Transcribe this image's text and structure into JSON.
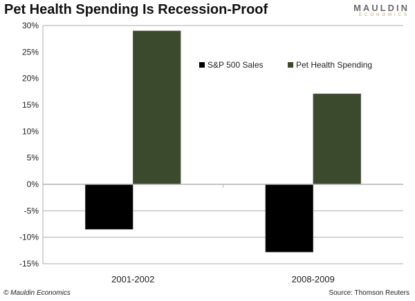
{
  "header": {
    "title": "Pet Health Spending Is Recession-Proof",
    "logo_line1": "MAULDIN",
    "logo_line2": "ECONOMICS"
  },
  "footer": {
    "copyright": "© Mauldin Economics",
    "source": "Source: Thomson Reuters"
  },
  "colors": {
    "sp500": "#000000",
    "pet": "#3b4a2c"
  },
  "chart_data": {
    "type": "bar",
    "title": "Pet Health Spending Is Recession-Proof",
    "categories": [
      "2001-2002",
      "2008-2009"
    ],
    "series": [
      {
        "name": "S&P 500 Sales",
        "values": [
          -8.5,
          -12.8
        ]
      },
      {
        "name": "Pet Health Spending",
        "values": [
          29,
          17.1
        ]
      }
    ],
    "ylim": [
      -15,
      30
    ],
    "yticks": [
      30,
      25,
      20,
      15,
      10,
      5,
      0,
      -5,
      -10,
      -15
    ],
    "ytick_labels": [
      "30%",
      "25%",
      "20%",
      "15%",
      "10%",
      "5%",
      "0%",
      "-5%",
      "-10%",
      "-15%"
    ],
    "legend_position": "top-right",
    "xlabel": "",
    "ylabel": ""
  }
}
